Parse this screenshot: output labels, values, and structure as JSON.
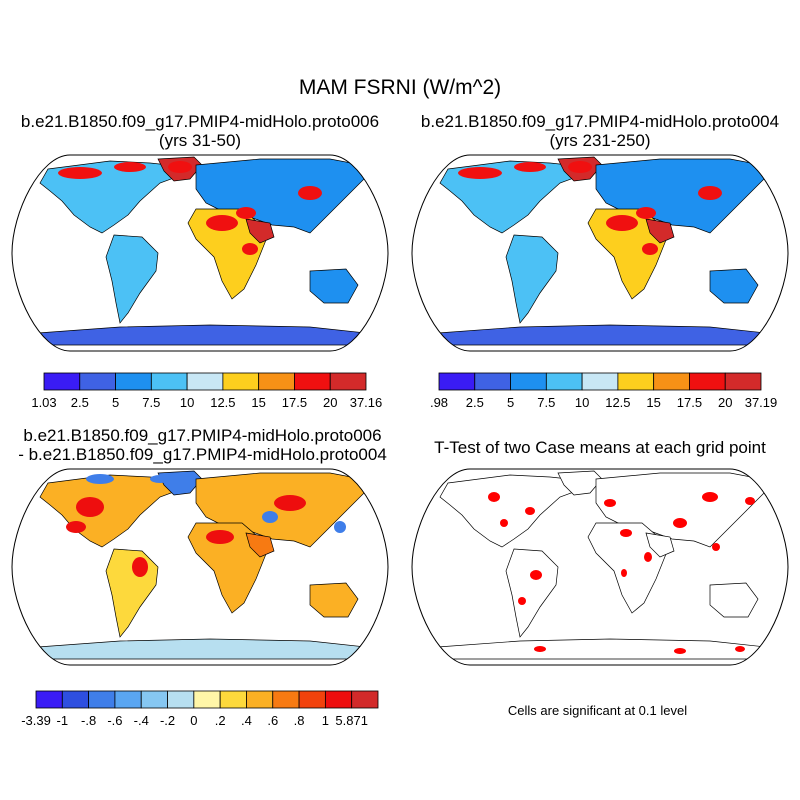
{
  "figure": {
    "title": "MAM FSRNI (W/m^2)",
    "panels": [
      {
        "id": "tl",
        "title_line1": "b.e21.B1850.f09_g17.PMIP4-midHolo.proto006",
        "title_line2": "(yrs 31-50)",
        "colorbar": {
          "colors": [
            "#3a1cf5",
            "#3f62e4",
            "#1e90f0",
            "#4cc1f5",
            "#c8e7f5",
            "#fdcf1e",
            "#f79116",
            "#f01010",
            "#d32a2a"
          ],
          "labels": [
            "1.03",
            "2.5",
            "5",
            "7.5",
            "10",
            "12.5",
            "15",
            "17.5",
            "20",
            "37.16"
          ]
        }
      },
      {
        "id": "tr",
        "title_line1": "b.e21.B1850.f09_g17.PMIP4-midHolo.proto004",
        "title_line2": "(yrs 231-250)",
        "colorbar": {
          "colors": [
            "#3a1cf5",
            "#3f62e4",
            "#1e90f0",
            "#4cc1f5",
            "#c8e7f5",
            "#fdcf1e",
            "#f79116",
            "#f01010",
            "#d32a2a"
          ],
          "labels": [
            ".98",
            "2.5",
            "5",
            "7.5",
            "10",
            "12.5",
            "15",
            "17.5",
            "20",
            "37.19"
          ]
        }
      },
      {
        "id": "bl",
        "title_line1": "b.e21.B1850.f09_g17.PMIP4-midHolo.proto006",
        "title_line2": "- b.e21.B1850.f09_g17.PMIP4-midHolo.proto004",
        "colorbar": {
          "colors": [
            "#3a1cf5",
            "#2e4fe0",
            "#3f7ee9",
            "#5aa6f2",
            "#86c7f2",
            "#b7dff0",
            "#fff6a8",
            "#fdd93c",
            "#fbb024",
            "#f77a12",
            "#f2420c",
            "#ee0e0e",
            "#d22a2a"
          ],
          "labels": [
            "-3.39",
            "-1",
            "-.8",
            "-.6",
            "-.4",
            "-.2",
            "0",
            ".2",
            ".4",
            ".6",
            ".8",
            "1",
            "5.871"
          ]
        }
      },
      {
        "id": "br",
        "title": "T-Test of two Case means at each grid point",
        "note": "Cells are significant at 0.1 level",
        "sig_color": "#ff0000"
      }
    ]
  }
}
